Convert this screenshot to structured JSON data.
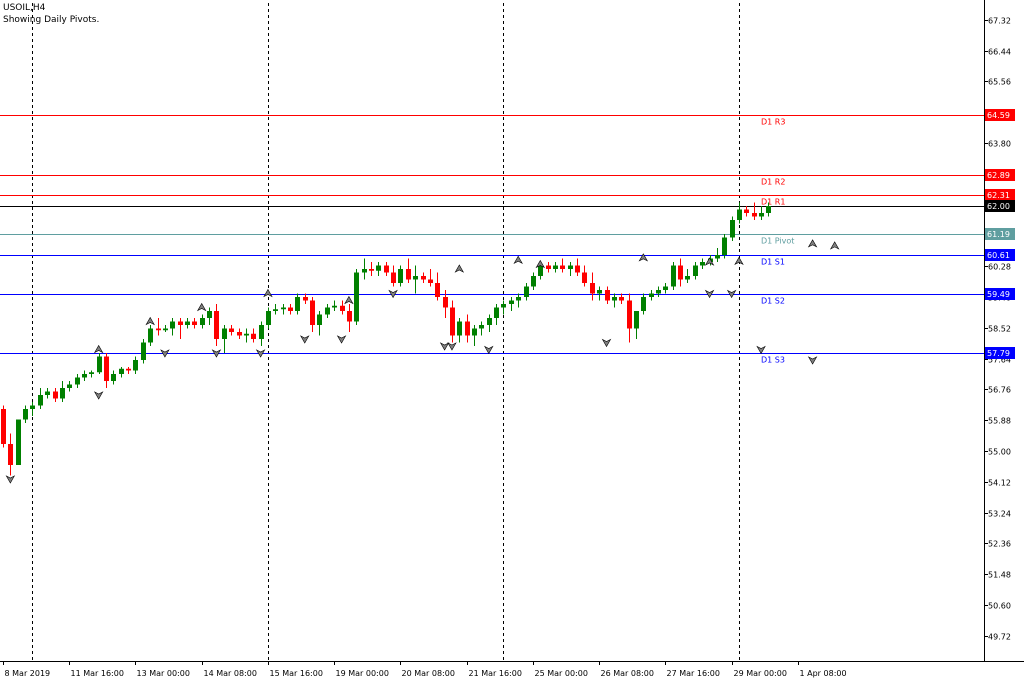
{
  "header": {
    "symbol_line": "USOIL,H4",
    "subtitle": "Showing Daily Pivots."
  },
  "colors": {
    "background": "#ffffff",
    "bull": "#008000",
    "bear": "#ff0000",
    "resistance": "#ff0000",
    "pivot": "#5f9ea0",
    "support": "#0000ff",
    "current": "#000000",
    "axis": "#000000"
  },
  "chart_data": {
    "type": "candlestick",
    "ylim": [
      49.0,
      67.8
    ],
    "y_ticks": [
      "67.32",
      "66.44",
      "65.56",
      "64.68",
      "63.80",
      "62.92",
      "62.04",
      "61.16",
      "60.28",
      "59.40",
      "58.52",
      "57.64",
      "56.76",
      "55.88",
      "55.00",
      "54.12",
      "53.24",
      "52.36",
      "51.48",
      "50.60",
      "49.72"
    ],
    "x_labels": [
      "8 Mar 2019",
      "11 Mar 16:00",
      "13 Mar 00:00",
      "14 Mar 08:00",
      "15 Mar 16:00",
      "19 Mar 00:00",
      "20 Mar 08:00",
      "21 Mar 16:00",
      "25 Mar 00:00",
      "26 Mar 08:00",
      "27 Mar 16:00",
      "29 Mar 00:00",
      "1 Apr 08:00"
    ],
    "day_separators": [
      4,
      36,
      68,
      100
    ],
    "pivots": [
      {
        "label": "D1 R3",
        "value": 64.59,
        "value_text": "64.59",
        "kind": "resistance"
      },
      {
        "label": "D1 R2",
        "value": 62.89,
        "value_text": "62.89",
        "kind": "resistance"
      },
      {
        "label": "D1 R1",
        "value": 62.31,
        "value_text": "62.31",
        "kind": "resistance"
      },
      {
        "label": "D1 Pivot",
        "value": 61.19,
        "value_text": "61.19",
        "kind": "pivot"
      },
      {
        "label": "D1 S1",
        "value": 60.61,
        "value_text": "60.61",
        "kind": "support"
      },
      {
        "label": "D1 S2",
        "value": 59.49,
        "value_text": "59.49",
        "kind": "support"
      },
      {
        "label": "D1 S3",
        "value": 57.79,
        "value_text": "57.79",
        "kind": "support"
      }
    ],
    "current_price": {
      "value": 62.0,
      "value_text": "62.00"
    },
    "candles": [
      [
        56.2,
        56.3,
        55.1,
        55.2
      ],
      [
        55.2,
        55.5,
        54.3,
        54.6
      ],
      [
        54.6,
        55.9,
        54.6,
        55.9
      ],
      [
        55.9,
        56.3,
        55.8,
        56.2
      ],
      [
        56.2,
        56.4,
        56.0,
        56.3
      ],
      [
        56.3,
        56.8,
        56.2,
        56.6
      ],
      [
        56.6,
        56.8,
        56.5,
        56.7
      ],
      [
        56.7,
        56.8,
        56.4,
        56.5
      ],
      [
        56.5,
        57.0,
        56.4,
        56.8
      ],
      [
        56.8,
        57.0,
        56.7,
        56.9
      ],
      [
        56.9,
        57.2,
        56.8,
        57.1
      ],
      [
        57.1,
        57.3,
        57.0,
        57.2
      ],
      [
        57.2,
        57.3,
        57.1,
        57.25
      ],
      [
        57.25,
        57.8,
        57.2,
        57.7
      ],
      [
        57.7,
        57.8,
        56.8,
        57.0
      ],
      [
        57.0,
        57.3,
        56.9,
        57.2
      ],
      [
        57.2,
        57.4,
        57.1,
        57.35
      ],
      [
        57.35,
        57.4,
        57.2,
        57.3
      ],
      [
        57.3,
        57.7,
        57.2,
        57.6
      ],
      [
        57.6,
        58.2,
        57.5,
        58.1
      ],
      [
        58.1,
        58.6,
        58.0,
        58.5
      ],
      [
        58.5,
        58.8,
        58.3,
        58.45
      ],
      [
        58.45,
        58.6,
        58.4,
        58.5
      ],
      [
        58.5,
        58.8,
        58.3,
        58.7
      ],
      [
        58.7,
        58.8,
        58.2,
        58.6
      ],
      [
        58.6,
        58.8,
        58.5,
        58.7
      ],
      [
        58.7,
        58.8,
        58.5,
        58.6
      ],
      [
        58.6,
        58.9,
        58.5,
        58.8
      ],
      [
        58.8,
        59.1,
        58.6,
        59.0
      ],
      [
        59.0,
        59.2,
        58.0,
        58.2
      ],
      [
        58.2,
        58.6,
        57.8,
        58.5
      ],
      [
        58.5,
        58.6,
        58.3,
        58.4
      ],
      [
        58.4,
        58.5,
        58.2,
        58.3
      ],
      [
        58.3,
        58.5,
        58.1,
        58.35
      ],
      [
        58.35,
        58.5,
        58.1,
        58.2
      ],
      [
        58.2,
        58.7,
        58.0,
        58.6
      ],
      [
        58.6,
        59.1,
        58.5,
        59.0
      ],
      [
        59.0,
        59.2,
        58.9,
        59.05
      ],
      [
        59.05,
        59.2,
        58.9,
        59.1
      ],
      [
        59.1,
        59.2,
        58.9,
        59.0
      ],
      [
        59.0,
        59.5,
        58.9,
        59.4
      ],
      [
        59.4,
        59.5,
        59.2,
        59.3
      ],
      [
        59.3,
        59.4,
        58.4,
        58.6
      ],
      [
        58.6,
        59.0,
        58.3,
        58.9
      ],
      [
        58.9,
        59.2,
        58.8,
        59.1
      ],
      [
        59.1,
        59.3,
        59.0,
        59.15
      ],
      [
        59.15,
        59.3,
        58.9,
        59.0
      ],
      [
        59.0,
        59.2,
        58.4,
        58.7
      ],
      [
        58.7,
        60.2,
        58.6,
        60.1
      ],
      [
        60.1,
        60.5,
        59.9,
        60.2
      ],
      [
        60.2,
        60.4,
        60.0,
        60.15
      ],
      [
        60.15,
        60.4,
        60.0,
        60.3
      ],
      [
        60.3,
        60.4,
        60.0,
        60.1
      ],
      [
        60.1,
        60.3,
        59.7,
        59.8
      ],
      [
        59.8,
        60.3,
        59.7,
        60.2
      ],
      [
        60.2,
        60.5,
        59.8,
        59.9
      ],
      [
        59.9,
        60.3,
        59.5,
        60.0
      ],
      [
        60.0,
        60.1,
        59.8,
        59.9
      ],
      [
        59.9,
        60.2,
        59.7,
        59.8
      ],
      [
        59.8,
        60.1,
        59.3,
        59.4
      ],
      [
        59.4,
        59.6,
        58.8,
        59.1
      ],
      [
        59.1,
        59.3,
        58.1,
        58.3
      ],
      [
        58.3,
        58.8,
        58.1,
        58.7
      ],
      [
        58.7,
        58.9,
        58.1,
        58.3
      ],
      [
        58.3,
        58.6,
        58.0,
        58.5
      ],
      [
        58.5,
        58.7,
        58.3,
        58.6
      ],
      [
        58.6,
        58.9,
        58.4,
        58.8
      ],
      [
        58.8,
        59.2,
        58.6,
        59.1
      ],
      [
        59.1,
        59.3,
        58.9,
        59.2
      ],
      [
        59.2,
        59.4,
        59.0,
        59.3
      ],
      [
        59.3,
        59.5,
        59.1,
        59.4
      ],
      [
        59.4,
        59.8,
        59.3,
        59.7
      ],
      [
        59.7,
        60.1,
        59.6,
        60.0
      ],
      [
        60.0,
        60.4,
        59.9,
        60.3
      ],
      [
        60.3,
        60.4,
        60.1,
        60.2
      ],
      [
        60.2,
        60.4,
        60.1,
        60.3
      ],
      [
        60.3,
        60.5,
        60.1,
        60.2
      ],
      [
        60.2,
        60.4,
        60.0,
        60.3
      ],
      [
        60.3,
        60.5,
        60.0,
        60.1
      ],
      [
        60.1,
        60.3,
        59.7,
        59.8
      ],
      [
        59.8,
        60.1,
        59.3,
        59.5
      ],
      [
        59.5,
        59.7,
        59.3,
        59.6
      ],
      [
        59.6,
        59.7,
        59.2,
        59.3
      ],
      [
        59.3,
        59.5,
        59.1,
        59.4
      ],
      [
        59.4,
        59.5,
        59.2,
        59.3
      ],
      [
        59.3,
        59.5,
        58.1,
        58.5
      ],
      [
        58.5,
        59.0,
        58.2,
        59.0
      ],
      [
        59.0,
        59.5,
        58.9,
        59.4
      ],
      [
        59.4,
        59.6,
        59.3,
        59.5
      ],
      [
        59.5,
        59.7,
        59.4,
        59.6
      ],
      [
        59.6,
        59.8,
        59.5,
        59.7
      ],
      [
        59.7,
        60.4,
        59.6,
        60.3
      ],
      [
        60.3,
        60.5,
        59.7,
        59.9
      ],
      [
        59.9,
        60.2,
        59.8,
        60.0
      ],
      [
        60.0,
        60.4,
        59.9,
        60.3
      ],
      [
        60.3,
        60.5,
        60.2,
        60.4
      ],
      [
        60.4,
        60.6,
        60.3,
        60.5
      ],
      [
        60.5,
        60.8,
        60.4,
        60.6
      ],
      [
        60.6,
        61.2,
        60.5,
        61.1
      ],
      [
        61.1,
        61.7,
        61.0,
        61.6
      ],
      [
        61.6,
        62.1,
        61.5,
        61.9
      ],
      [
        61.9,
        62.0,
        61.7,
        61.8
      ],
      [
        61.8,
        62.1,
        61.6,
        61.7
      ],
      [
        61.7,
        62.0,
        61.6,
        61.8
      ],
      [
        61.8,
        62.1,
        61.7,
        62.0
      ]
    ],
    "fractals_up": [
      [
        13,
        57.9
      ],
      [
        20,
        58.7
      ],
      [
        27,
        59.1
      ],
      [
        36,
        59.5
      ],
      [
        47,
        59.3
      ],
      [
        62,
        60.2
      ],
      [
        70,
        60.45
      ],
      [
        73,
        60.33
      ],
      [
        87,
        60.52
      ],
      [
        96,
        60.4
      ],
      [
        100,
        60.42
      ],
      [
        110,
        60.92
      ],
      [
        113,
        60.86
      ]
    ],
    "fractals_down": [
      [
        1,
        54.2
      ],
      [
        13,
        56.6
      ],
      [
        22,
        57.8
      ],
      [
        29,
        57.8
      ],
      [
        35,
        57.8
      ],
      [
        41,
        58.2
      ],
      [
        46,
        58.2
      ],
      [
        53,
        59.5
      ],
      [
        60,
        58.0
      ],
      [
        61,
        58.0
      ],
      [
        66,
        57.9
      ],
      [
        82,
        58.1
      ],
      [
        96,
        59.5
      ],
      [
        99,
        59.5
      ],
      [
        103,
        57.9
      ],
      [
        110,
        57.6
      ]
    ]
  }
}
